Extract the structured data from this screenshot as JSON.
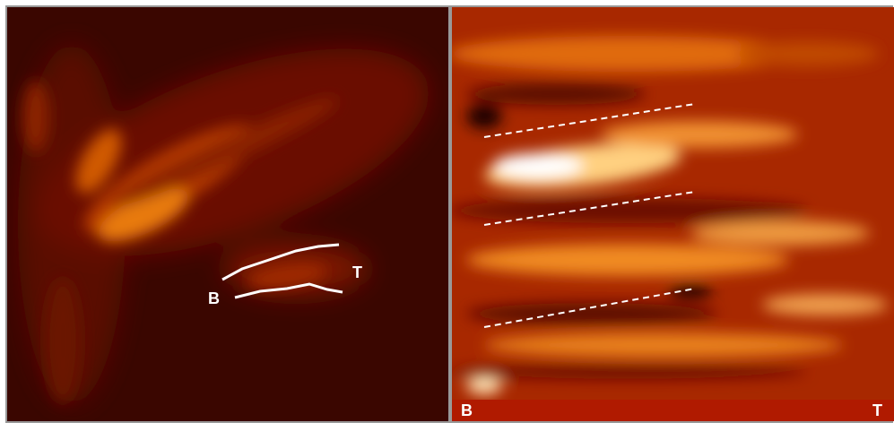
{
  "left_panel": {
    "labels": [
      "B",
      "T"
    ]
  },
  "right_panel": {
    "labels": [
      "B",
      "T"
    ]
  }
}
